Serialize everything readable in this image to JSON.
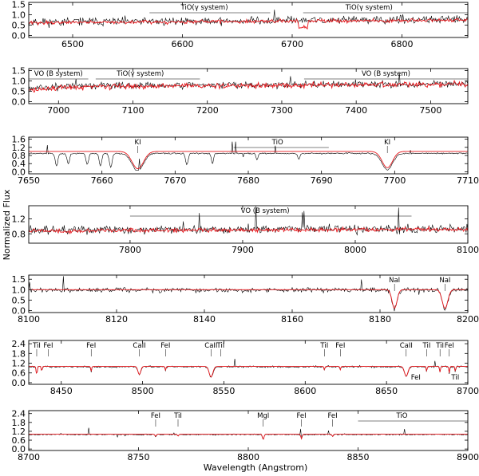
{
  "figure": {
    "xlabel": "Wavelength (Angstrom)",
    "ylabel": "Normalized Flux"
  },
  "colors": {
    "observed": "#000000",
    "model": "#e8161b",
    "axes": "#000000",
    "background": "#ffffff"
  },
  "chart_data": [
    {
      "type": "line",
      "xlim": [
        6460,
        6860
      ],
      "ylim": [
        -0.1,
        1.6
      ],
      "xticks": [
        6500,
        6600,
        6700,
        6800
      ],
      "yticks": [
        0.0,
        0.5,
        1.0,
        1.5
      ],
      "ytick_labels": [
        "0.0",
        "0.5",
        "1.0",
        "1.5"
      ],
      "series": [
        {
          "role": "observed",
          "base": 0.65,
          "slope": 0.0003,
          "noise": 0.18
        },
        {
          "role": "model",
          "base": 0.62,
          "slope": 0.0003,
          "noise": 0.08
        }
      ],
      "lines": [],
      "annotations": [
        {
          "text": "TiO(γ system)",
          "x": 6620,
          "span": [
            6570,
            6680
          ]
        },
        {
          "text": "TiO(γ system)",
          "x": 6770,
          "span": [
            6710,
            6860
          ]
        }
      ]
    },
    {
      "type": "line",
      "xlim": [
        6960,
        7550
      ],
      "ylim": [
        -0.1,
        1.6
      ],
      "xticks": [
        7000,
        7100,
        7200,
        7300,
        7400,
        7500
      ],
      "yticks": [
        0.0,
        0.5,
        1.0,
        1.5
      ],
      "ytick_labels": [
        "0.0",
        "0.5",
        "1.0",
        "1.5"
      ],
      "series": [
        {
          "role": "observed",
          "base": 0.75,
          "slope": 0.0002,
          "noise": 0.15
        },
        {
          "role": "model",
          "base": 0.72,
          "slope": 0.0002,
          "noise": 0.12
        }
      ],
      "lines": [],
      "annotations": [
        {
          "text": "VO (B system)",
          "x": 7000,
          "span": [
            6960,
            7040
          ]
        },
        {
          "text": "TiO(γ system)",
          "x": 7110,
          "span": [
            7050,
            7190
          ]
        },
        {
          "text": "VO (B system)",
          "x": 7440,
          "span": [
            7330,
            7550
          ]
        }
      ]
    },
    {
      "type": "line",
      "xlim": [
        7650,
        7710
      ],
      "ylim": [
        -0.1,
        1.7
      ],
      "xticks": [
        7650,
        7660,
        7670,
        7680,
        7690,
        7700,
        7710
      ],
      "yticks": [
        0.0,
        0.4,
        0.8,
        1.2,
        1.6
      ],
      "ytick_labels": [
        "0.0",
        "0.4",
        "0.8",
        "1.2",
        "1.6"
      ],
      "series": [
        {
          "role": "observed",
          "base": 0.9,
          "slope": 0,
          "noise": 0.03
        },
        {
          "role": "model",
          "base": 1.0,
          "slope": 0,
          "noise": 0.0
        }
      ],
      "lines": [
        {
          "x": 7664.9,
          "depth": 0.85,
          "width": 1.1,
          "model": true
        },
        {
          "x": 7699.0,
          "depth": 0.8,
          "width": 1.0,
          "model": true
        },
        {
          "x": 7653.8,
          "depth": 0.6,
          "width": 0.25,
          "model": false
        },
        {
          "x": 7655.4,
          "depth": 0.5,
          "width": 0.25,
          "model": false
        },
        {
          "x": 7658.0,
          "depth": 0.55,
          "width": 0.25,
          "model": false
        },
        {
          "x": 7659.8,
          "depth": 0.6,
          "width": 0.25,
          "model": false
        },
        {
          "x": 7661.2,
          "depth": 0.7,
          "width": 0.25,
          "model": false
        },
        {
          "x": 7671.6,
          "depth": 0.55,
          "width": 0.25,
          "model": false
        },
        {
          "x": 7675.1,
          "depth": 0.5,
          "width": 0.2,
          "model": false
        },
        {
          "x": 7681.2,
          "depth": 0.3,
          "width": 0.2,
          "model": false
        },
        {
          "x": 7686.9,
          "depth": 0.3,
          "width": 0.2,
          "model": false
        }
      ],
      "annotations": [
        {
          "text": "KI",
          "x": 7664.9,
          "span": null
        },
        {
          "text": "TiO",
          "x": 7684,
          "span": [
            7678,
            7691
          ]
        },
        {
          "text": "KI",
          "x": 7699.0,
          "span": null
        }
      ]
    },
    {
      "type": "line",
      "xlim": [
        7710,
        8100
      ],
      "ylim": [
        0.55,
        1.55
      ],
      "xticks": [
        7800,
        7900,
        8000,
        8100
      ],
      "yticks": [
        0.8,
        1.2
      ],
      "ytick_labels": [
        "0.8",
        "1.2"
      ],
      "series": [
        {
          "role": "observed",
          "base": 0.9,
          "slope": 0.0001,
          "noise": 0.1
        },
        {
          "role": "model",
          "base": 0.88,
          "slope": 0.0001,
          "noise": 0.05
        }
      ],
      "lines": [],
      "annotations": [
        {
          "text": "VO (B system)",
          "x": 7920,
          "span": [
            7800,
            8050
          ]
        }
      ]
    },
    {
      "type": "line",
      "xlim": [
        8100,
        8200
      ],
      "ylim": [
        -0.1,
        1.7
      ],
      "xticks": [
        8100,
        8120,
        8140,
        8160,
        8180,
        8200
      ],
      "yticks": [
        0.0,
        0.5,
        1.0,
        1.5
      ],
      "ytick_labels": [
        "0.0",
        "0.5",
        "1.0",
        "1.5"
      ],
      "series": [
        {
          "role": "observed",
          "base": 0.98,
          "slope": 0,
          "noise": 0.1
        },
        {
          "role": "model",
          "base": 1.0,
          "slope": 0,
          "noise": 0.0
        }
      ],
      "lines": [
        {
          "x": 8183.3,
          "depth": 0.9,
          "width": 0.8,
          "model": true
        },
        {
          "x": 8194.8,
          "depth": 0.9,
          "width": 0.9,
          "model": true
        }
      ],
      "annotations": [
        {
          "text": "NaI",
          "x": 8183.3,
          "span": null
        },
        {
          "text": "NaI",
          "x": 8194.8,
          "span": null
        }
      ]
    },
    {
      "type": "line",
      "xlim": [
        8430,
        8700
      ],
      "ylim": [
        -0.1,
        2.6
      ],
      "xticks": [
        8450,
        8500,
        8550,
        8600,
        8650,
        8700
      ],
      "yticks": [
        0.0,
        0.6,
        1.2,
        1.8,
        2.4
      ],
      "ytick_labels": [
        "0.0",
        "0.6",
        "1.2",
        "1.8",
        "2.4"
      ],
      "series": [
        {
          "role": "observed",
          "base": 0.98,
          "slope": 0,
          "noise": 0.05
        },
        {
          "role": "model",
          "base": 1.0,
          "slope": 0,
          "noise": 0.0
        }
      ],
      "lines": [
        {
          "x": 8498.0,
          "depth": 0.5,
          "width": 1.2,
          "model": true
        },
        {
          "x": 8542.1,
          "depth": 0.65,
          "width": 1.6,
          "model": true
        },
        {
          "x": 8662.1,
          "depth": 0.6,
          "width": 1.5,
          "model": true
        },
        {
          "x": 8434.9,
          "depth": 0.5,
          "width": 0.5,
          "model": true
        },
        {
          "x": 8438.0,
          "depth": 0.3,
          "width": 0.4,
          "model": true
        },
        {
          "x": 8468.4,
          "depth": 0.3,
          "width": 0.4,
          "model": true
        },
        {
          "x": 8514.1,
          "depth": 0.25,
          "width": 0.4,
          "model": true
        },
        {
          "x": 8611.8,
          "depth": 0.2,
          "width": 0.4,
          "model": true
        },
        {
          "x": 8621.6,
          "depth": 0.2,
          "width": 0.4,
          "model": true
        },
        {
          "x": 8674.7,
          "depth": 0.3,
          "width": 0.4,
          "model": true
        },
        {
          "x": 8682.9,
          "depth": 0.35,
          "width": 0.4,
          "model": true
        },
        {
          "x": 8688.6,
          "depth": 0.4,
          "width": 0.4,
          "model": true
        },
        {
          "x": 8692.3,
          "depth": 0.3,
          "width": 0.4,
          "model": true
        }
      ],
      "annotations": [
        {
          "text": "TiI",
          "x": 8434.9,
          "span": null
        },
        {
          "text": "FeI",
          "x": 8442.0,
          "span": null
        },
        {
          "text": "FeI",
          "x": 8468.4,
          "span": null
        },
        {
          "text": "CaII",
          "x": 8498.0,
          "span": null
        },
        {
          "text": "FeI",
          "x": 8514.1,
          "span": null
        },
        {
          "text": "CaII",
          "x": 8542.1,
          "span": null
        },
        {
          "text": "TiI",
          "x": 8548.0,
          "span": null
        },
        {
          "text": "TiI",
          "x": 8611.8,
          "span": null
        },
        {
          "text": "FeI",
          "x": 8621.6,
          "span": null
        },
        {
          "text": "CaII",
          "x": 8662.1,
          "span": null
        },
        {
          "text": "TiI",
          "x": 8674.7,
          "span": null
        },
        {
          "text": "TiI",
          "x": 8682.9,
          "span": null
        },
        {
          "text": "FeI",
          "x": 8688.6,
          "span": null
        },
        {
          "text": "FeI",
          "x": 8668.0,
          "span": null,
          "low": true
        },
        {
          "text": "TiI",
          "x": 8692.3,
          "span": null,
          "low": true
        }
      ]
    },
    {
      "type": "line",
      "xlim": [
        8700,
        8900
      ],
      "ylim": [
        -0.1,
        2.6
      ],
      "xticks": [
        8700,
        8750,
        8800,
        8850,
        8900
      ],
      "yticks": [
        0.0,
        0.6,
        1.2,
        1.8,
        2.4
      ],
      "ytick_labels": [
        "0.0",
        "0.6",
        "1.2",
        "1.8",
        "2.4"
      ],
      "series": [
        {
          "role": "observed",
          "base": 0.98,
          "slope": 0,
          "noise": 0.04
        },
        {
          "role": "model",
          "base": 1.0,
          "slope": 0,
          "noise": 0.0
        }
      ],
      "lines": [
        {
          "x": 8806.8,
          "depth": 0.35,
          "width": 0.5,
          "model": true
        },
        {
          "x": 8824.2,
          "depth": 0.3,
          "width": 0.4,
          "model": true
        },
        {
          "x": 8757.8,
          "depth": 0.15,
          "width": 0.4,
          "model": true
        },
        {
          "x": 8768.0,
          "depth": 0.12,
          "width": 0.4,
          "model": true
        },
        {
          "x": 8838.4,
          "depth": 0.15,
          "width": 0.4,
          "model": true
        }
      ],
      "annotations": [
        {
          "text": "FeI",
          "x": 8757.8,
          "span": null
        },
        {
          "text": "TiI",
          "x": 8768.0,
          "span": null
        },
        {
          "text": "MgI",
          "x": 8806.8,
          "span": null
        },
        {
          "text": "FeI",
          "x": 8824.2,
          "span": null
        },
        {
          "text": "FeI",
          "x": 8838.4,
          "span": null
        },
        {
          "text": "TiO",
          "x": 8870,
          "span": [
            8850,
            8900
          ]
        }
      ]
    }
  ]
}
